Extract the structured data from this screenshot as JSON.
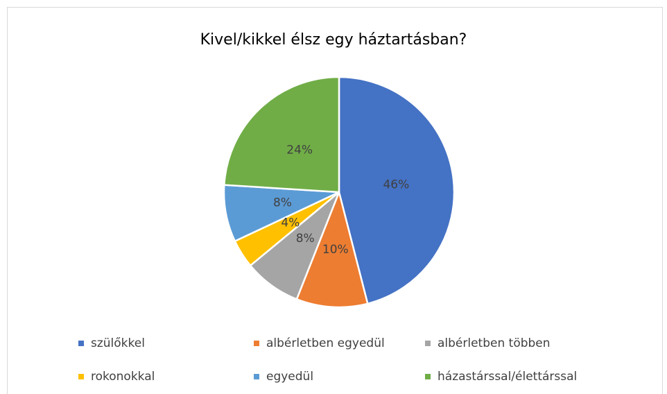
{
  "chart_data": {
    "type": "pie",
    "title": "Kivel/kikkel élsz egy háztartásban?",
    "categories": [
      "szülőkkel",
      "albérletben egyedül",
      "albérletben többen",
      "rokonokkal",
      "egyedül",
      "házastárssal/élettárssal"
    ],
    "values": [
      46,
      10,
      8,
      4,
      8,
      24
    ],
    "value_labels": [
      "46%",
      "10%",
      "8%",
      "4%",
      "8%",
      "24%"
    ],
    "colors": [
      "#4472c4",
      "#ed7d31",
      "#a5a5a5",
      "#ffc000",
      "#5b9bd5",
      "#70ad47"
    ],
    "legend": "bottom"
  }
}
